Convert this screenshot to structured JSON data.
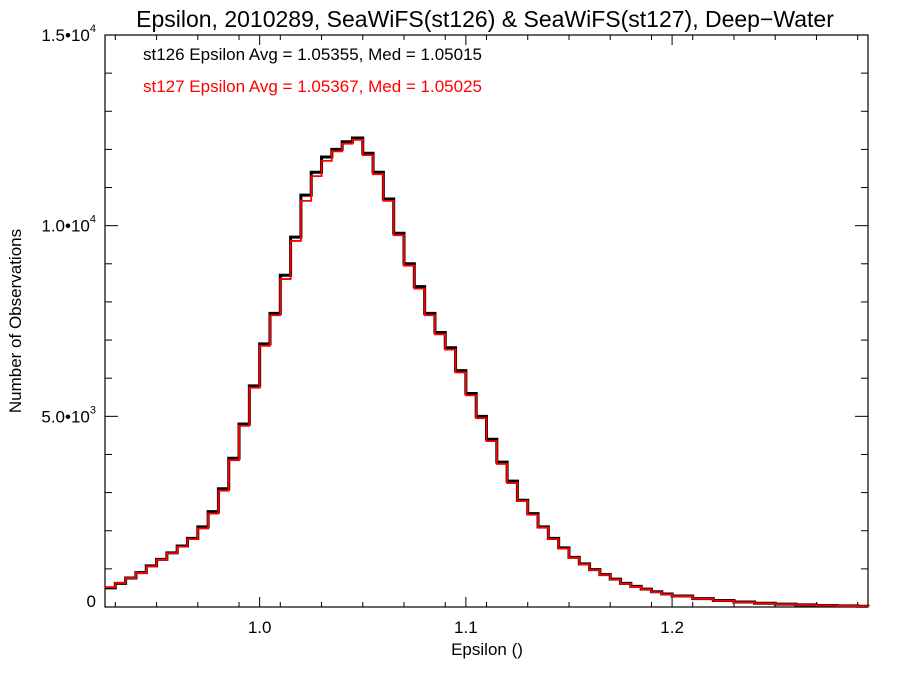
{
  "chart_data": {
    "type": "line",
    "title": "Epsilon, 2010289, SeaWiFS(st126) & SeaWiFS(st127), Deep−Water",
    "xlabel": "Epsilon ()",
    "ylabel": "Number of Observations",
    "xlim": [
      0.925,
      1.295
    ],
    "ylim": [
      0,
      15000
    ],
    "grid": false,
    "x_ticks": [
      {
        "value": 1.0,
        "label": "1.0"
      },
      {
        "value": 1.1,
        "label": "1.1"
      },
      {
        "value": 1.2,
        "label": "1.2"
      }
    ],
    "y_ticks": [
      {
        "value": 0,
        "mantissa": "0",
        "exp": ""
      },
      {
        "value": 5000,
        "mantissa": "5.0•10",
        "exp": "3"
      },
      {
        "value": 10000,
        "mantissa": "1.0•10",
        "exp": "4"
      },
      {
        "value": 15000,
        "mantissa": "1.5•10",
        "exp": "4"
      }
    ],
    "annotations": [
      {
        "text": "st126 Epsilon Avg = 1.05355, Med = 1.05015",
        "color": "#000000"
      },
      {
        "text": "st127 Epsilon Avg = 1.05367, Med = 1.05025",
        "color": "#ff0000"
      }
    ],
    "series": [
      {
        "color": "#000000",
        "x": [
          0.925,
          0.93,
          0.935,
          0.94,
          0.945,
          0.95,
          0.955,
          0.96,
          0.965,
          0.97,
          0.975,
          0.98,
          0.985,
          0.99,
          0.995,
          1.0,
          1.005,
          1.01,
          1.015,
          1.02,
          1.025,
          1.03,
          1.035,
          1.04,
          1.045,
          1.05,
          1.055,
          1.06,
          1.065,
          1.07,
          1.075,
          1.08,
          1.085,
          1.09,
          1.095,
          1.1,
          1.105,
          1.11,
          1.115,
          1.12,
          1.125,
          1.13,
          1.135,
          1.14,
          1.145,
          1.15,
          1.155,
          1.16,
          1.165,
          1.17,
          1.175,
          1.18,
          1.185,
          1.19,
          1.195,
          1.2,
          1.21,
          1.22,
          1.23,
          1.24,
          1.25,
          1.26,
          1.27,
          1.28,
          1.29,
          1.295
        ],
        "y": [
          500,
          620,
          760,
          900,
          1080,
          1250,
          1420,
          1600,
          1800,
          2100,
          2500,
          3100,
          3900,
          4800,
          5800,
          6900,
          7700,
          8700,
          9700,
          10800,
          11400,
          11800,
          12000,
          12200,
          12300,
          11900,
          11400,
          10700,
          9800,
          9000,
          8400,
          7700,
          7200,
          6800,
          6200,
          5600,
          5000,
          4400,
          3800,
          3300,
          2800,
          2450,
          2100,
          1800,
          1550,
          1300,
          1130,
          980,
          850,
          730,
          620,
          540,
          470,
          400,
          340,
          290,
          220,
          170,
          130,
          100,
          75,
          55,
          40,
          30,
          20,
          15
        ]
      },
      {
        "color": "#ff0000",
        "x": [
          0.925,
          0.93,
          0.935,
          0.94,
          0.945,
          0.95,
          0.955,
          0.96,
          0.965,
          0.97,
          0.975,
          0.98,
          0.985,
          0.99,
          0.995,
          1.0,
          1.005,
          1.01,
          1.015,
          1.02,
          1.025,
          1.03,
          1.035,
          1.04,
          1.045,
          1.05,
          1.055,
          1.06,
          1.065,
          1.07,
          1.075,
          1.08,
          1.085,
          1.09,
          1.095,
          1.1,
          1.105,
          1.11,
          1.115,
          1.12,
          1.125,
          1.13,
          1.135,
          1.14,
          1.145,
          1.15,
          1.155,
          1.16,
          1.165,
          1.17,
          1.175,
          1.18,
          1.185,
          1.19,
          1.195,
          1.2,
          1.21,
          1.22,
          1.23,
          1.24,
          1.25,
          1.26,
          1.27,
          1.28,
          1.29,
          1.295
        ],
        "y": [
          520,
          630,
          760,
          890,
          1060,
          1240,
          1410,
          1580,
          1780,
          2060,
          2450,
          3050,
          3850,
          4750,
          5750,
          6850,
          7650,
          8600,
          9600,
          10650,
          11300,
          11700,
          11950,
          12150,
          12250,
          11850,
          11350,
          10650,
          9750,
          8950,
          8350,
          7650,
          7150,
          6750,
          6150,
          5550,
          4950,
          4350,
          3750,
          3250,
          2780,
          2420,
          2080,
          1780,
          1530,
          1290,
          1120,
          970,
          840,
          720,
          610,
          530,
          460,
          390,
          330,
          280,
          215,
          165,
          125,
          95,
          72,
          52,
          38,
          28,
          18,
          12
        ]
      }
    ]
  }
}
